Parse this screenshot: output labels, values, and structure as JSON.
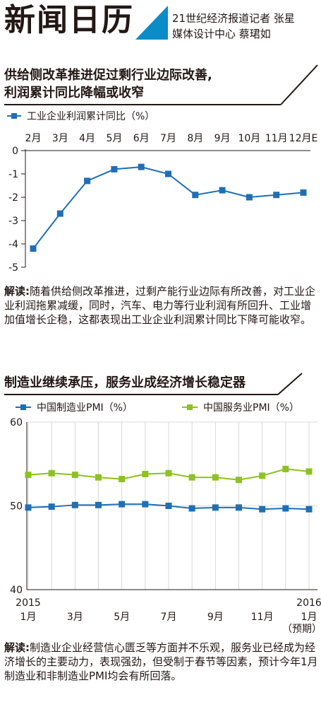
{
  "masthead": {
    "title": "新闻日历",
    "byline1": "21世纪经济报道记者 张星",
    "byline2": "媒体设计中心 蔡珺如",
    "accent": "#0a8cc8"
  },
  "section1": {
    "title_line1": "供给侧改革推进促过剩行业边际改善,",
    "title_line2": "利润累计同比降幅或收窄",
    "analysis_label": "解读:",
    "analysis_text": "随着供给侧改革推进，过剩产能行业边际有所改善，对工业企业利润拖累减缓，同时，汽车、电力等行业利润有所回升、工业增加值增长企稳，这都表现出工业企业利润累计同比下降可能收窄。"
  },
  "section2": {
    "title": "制造业继续承压，服务业成经济增长稳定器",
    "analysis_label": "解读:",
    "analysis_text": "制造业企业经营信心匮乏等方面并不乐观，服务业已经成为经济增长的主要动力，表现强劲，但受制于春节等因素，预计今年1月制造业和非制造业PMI均会有所回落。"
  },
  "chart_data": [
    {
      "type": "line",
      "categories": [
        "2月",
        "3月",
        "4月",
        "5月",
        "6月",
        "7月",
        "8月",
        "9月",
        "10月",
        "11月",
        "12月E"
      ],
      "series": [
        {
          "name": "工业企业利润累计同比（%）",
          "color": "#1f6fb5",
          "values": [
            -4.2,
            -2.7,
            -1.3,
            -0.8,
            -0.7,
            -1.0,
            -1.9,
            -1.7,
            -2.0,
            -1.9,
            -1.8
          ]
        }
      ],
      "yticks": [
        "0",
        "-1",
        "-2",
        "-3",
        "-4",
        "-5"
      ],
      "ylim": [
        -5,
        0
      ],
      "grid": false,
      "legend": "top-left"
    },
    {
      "type": "line",
      "x": [
        "2015-01",
        "2015-02",
        "2015-03",
        "2015-04",
        "2015-05",
        "2015-06",
        "2015-07",
        "2015-08",
        "2015-09",
        "2015-10",
        "2015-11",
        "2015-12",
        "2016-01"
      ],
      "xtick_labels": [
        {
          "top": "2015",
          "bottom": "1月"
        },
        {
          "top": "",
          "bottom": "3月"
        },
        {
          "top": "",
          "bottom": "5月"
        },
        {
          "top": "",
          "bottom": "7月"
        },
        {
          "top": "",
          "bottom": "9月"
        },
        {
          "top": "",
          "bottom": "11月"
        },
        {
          "top": "2016",
          "bottom": "1月"
        }
      ],
      "xtick_note": "（预期）",
      "series": [
        {
          "name": "中国制造业PMI（%）",
          "color": "#1f6fb5",
          "values": [
            49.8,
            49.9,
            50.1,
            50.1,
            50.2,
            50.2,
            50.0,
            49.7,
            49.8,
            49.8,
            49.6,
            49.7,
            49.6
          ]
        },
        {
          "name": "中国服务业PMI（%）",
          "color": "#8dc21f",
          "values": [
            53.7,
            53.9,
            53.7,
            53.4,
            53.2,
            53.8,
            53.9,
            53.4,
            53.4,
            53.1,
            53.6,
            54.4,
            54.1
          ]
        }
      ],
      "yticks": [
        "60",
        "50",
        "40"
      ],
      "ylim": [
        40,
        60
      ],
      "grid": true,
      "legend": "top"
    }
  ]
}
